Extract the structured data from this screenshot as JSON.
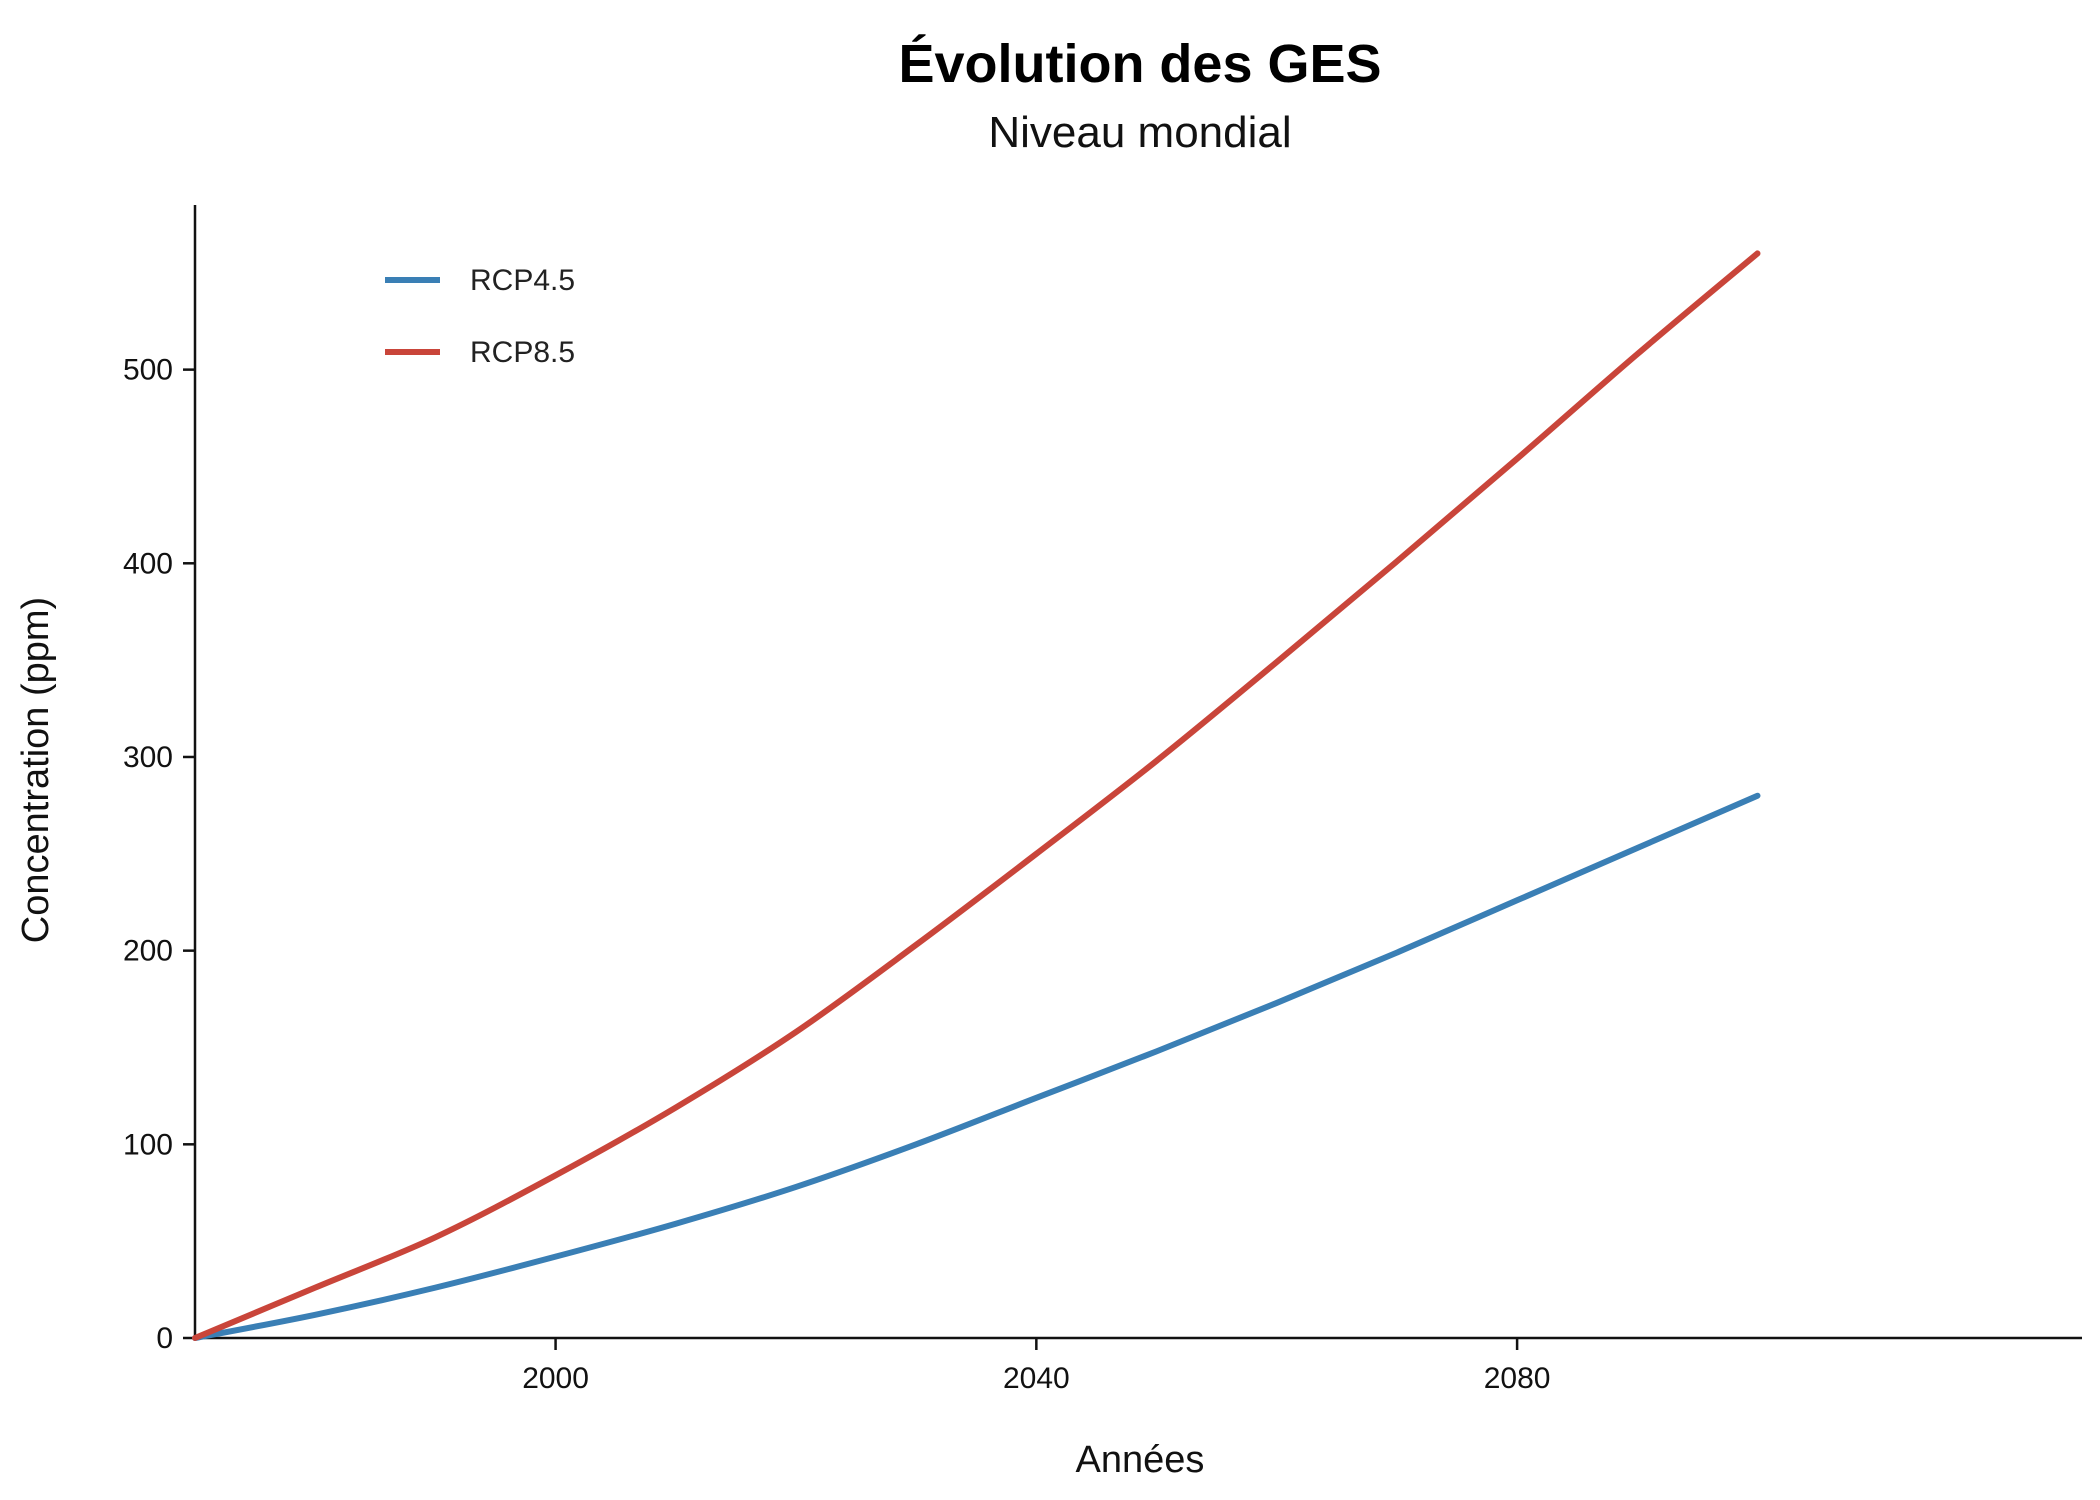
{
  "chart_data": {
    "type": "line",
    "title": "Évolution des GES",
    "subtitle": "Niveau mondial",
    "xlabel": "Années",
    "ylabel": "Concentration (ppm)",
    "xlim": [
      1970,
      2127
    ],
    "ylim": [
      0,
      585
    ],
    "x_ticks": [
      2000,
      2040,
      2080
    ],
    "y_ticks": [
      0,
      100,
      200,
      300,
      400,
      500
    ],
    "grid": false,
    "legend_position": "top-left",
    "x": [
      1970,
      1980,
      1990,
      2000,
      2010,
      2020,
      2030,
      2040,
      2050,
      2060,
      2070,
      2080,
      2090,
      2100
    ],
    "series": [
      {
        "name": "RCP4.5",
        "color": "#3a7fb5",
        "values": [
          0,
          12,
          26,
          42,
          59,
          78,
          100,
          124,
          148,
          173,
          199,
          226,
          253,
          280
        ]
      },
      {
        "name": "RCP8.5",
        "color": "#c9453a",
        "values": [
          0,
          26,
          52,
          84,
          119,
          158,
          203,
          250,
          298,
          349,
          401,
          454,
          508,
          560
        ]
      }
    ]
  }
}
